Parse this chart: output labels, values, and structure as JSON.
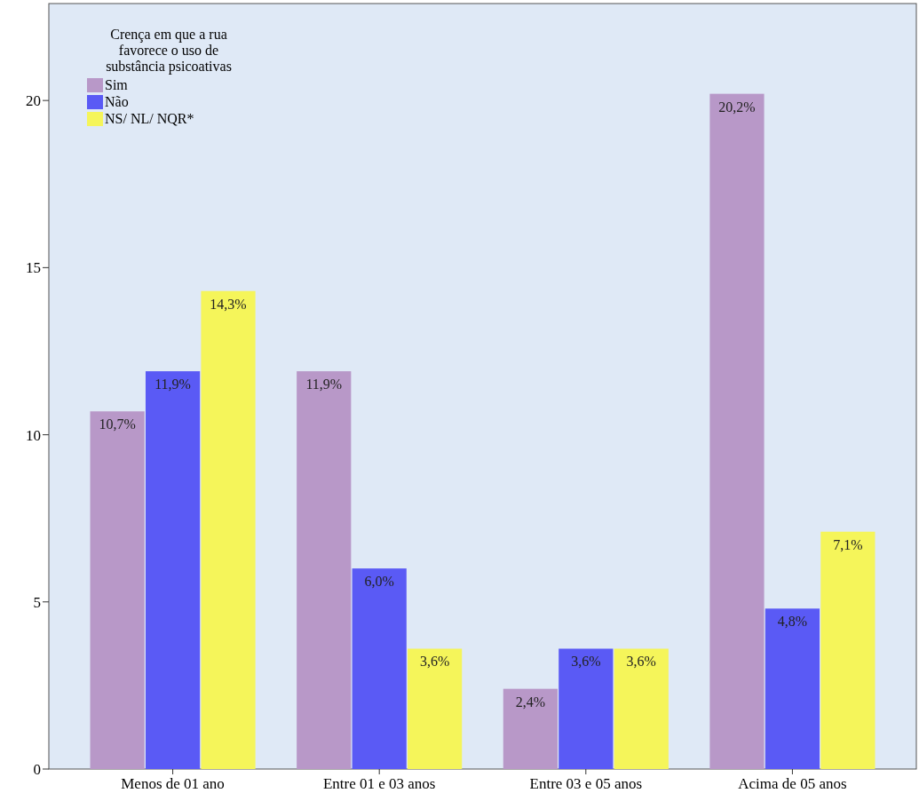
{
  "chart_data": {
    "type": "bar",
    "categories": [
      "Menos de 01 ano",
      "Entre 01 e 03 anos",
      "Entre 03 e 05 anos",
      "Acima de 05 anos"
    ],
    "legend_title": "Crença em que a rua favorece o uso de substância psicoativas",
    "series": [
      {
        "name": "Sim",
        "color": "#b898c8",
        "values": [
          10.7,
          11.9,
          2.4,
          20.2
        ],
        "value_labels": [
          "10,7%",
          "11,9%",
          "2,4%",
          "20,2%"
        ]
      },
      {
        "name": "Não",
        "color": "#5a5af5",
        "values": [
          11.9,
          6.0,
          3.6,
          4.8
        ],
        "value_labels": [
          "11,9%",
          "6,0%",
          "3,6%",
          "4,8%"
        ]
      },
      {
        "name": "NS/ NL/ NQR*",
        "color": "#f5f55a",
        "values": [
          14.3,
          3.6,
          3.6,
          7.1
        ],
        "value_labels": [
          "14,3%",
          "3,6%",
          "3,6%",
          "7,1%"
        ]
      }
    ],
    "ylim": [
      0,
      22.9
    ],
    "yticks": [
      0,
      5,
      10,
      15,
      20
    ],
    "grid": false,
    "legend": "top left"
  }
}
